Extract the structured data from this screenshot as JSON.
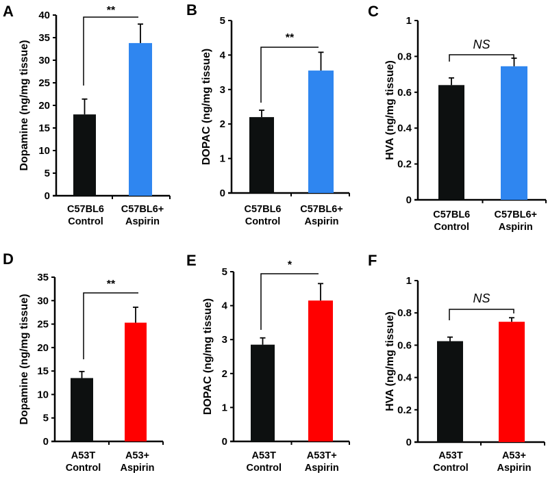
{
  "chart_data": [
    {
      "panel": "A",
      "type": "bar",
      "ylabel": "Dopamine (ng/mg tissue)",
      "categories": [
        [
          "C57BL6",
          "Control"
        ],
        [
          "C57BL6+",
          "Aspirin"
        ]
      ],
      "values": [
        18.0,
        33.8
      ],
      "errors": [
        21.4,
        38.0
      ],
      "colors": [
        "#0d1010",
        "#2f86f0"
      ],
      "ylim": [
        0,
        40
      ],
      "yticks": [
        "0",
        "5",
        "10",
        "15",
        "20",
        "25",
        "30",
        "35",
        "40"
      ],
      "tickstep": 5,
      "significance": "**"
    },
    {
      "panel": "B",
      "type": "bar",
      "ylabel": "DOPAC (ng/mg tissue)",
      "categories": [
        [
          "C57BL6",
          "Control"
        ],
        [
          "C57BL6+",
          "Aspirin"
        ]
      ],
      "values": [
        2.2,
        3.55
      ],
      "errors": [
        2.4,
        4.08
      ],
      "colors": [
        "#0d1010",
        "#2f86f0"
      ],
      "ylim": [
        0,
        5
      ],
      "yticks": [
        "0",
        "1",
        "2",
        "3",
        "4",
        "5"
      ],
      "tickstep": 1,
      "significance": "**"
    },
    {
      "panel": "C",
      "type": "bar",
      "ylabel": "HVA (ng/mg tissue)",
      "categories": [
        [
          "C57BL6",
          "Control"
        ],
        [
          "C57BL6+",
          "Aspirin"
        ]
      ],
      "values": [
        0.64,
        0.745
      ],
      "errors": [
        0.68,
        0.79
      ],
      "colors": [
        "#0d1010",
        "#2f86f0"
      ],
      "ylim": [
        0,
        1
      ],
      "yticks": [
        "0",
        "0.2",
        "0.4",
        "0.6",
        "0.8",
        "1"
      ],
      "tickstep": 0.2,
      "significance": "NS"
    },
    {
      "panel": "D",
      "type": "bar",
      "ylabel": "Dopamine (ng/mg tissue)",
      "categories": [
        [
          "A53T",
          "Control"
        ],
        [
          "A53+",
          "Aspirin"
        ]
      ],
      "values": [
        13.5,
        25.3
      ],
      "errors": [
        14.9,
        28.6
      ],
      "colors": [
        "#0d1010",
        "#ff0000"
      ],
      "ylim": [
        0,
        35
      ],
      "yticks": [
        "0",
        "5",
        "10",
        "15",
        "20",
        "25",
        "30",
        "35"
      ],
      "tickstep": 5,
      "significance": "**"
    },
    {
      "panel": "E",
      "type": "bar",
      "ylabel": "DOPAC (ng/mg tissue)",
      "categories": [
        [
          "A53T",
          "Control"
        ],
        [
          "A53T+",
          "Aspirin"
        ]
      ],
      "values": [
        2.85,
        4.15
      ],
      "errors": [
        3.05,
        4.65
      ],
      "colors": [
        "#0d1010",
        "#ff0000"
      ],
      "ylim": [
        0,
        5
      ],
      "yticks": [
        "0",
        "1",
        "2",
        "3",
        "4",
        "5"
      ],
      "tickstep": 1,
      "significance": "*"
    },
    {
      "panel": "F",
      "type": "bar",
      "ylabel": "HVA (ng/mg tissue)",
      "categories": [
        [
          "A53T",
          "Control"
        ],
        [
          "A53+",
          "Aspirin"
        ]
      ],
      "values": [
        0.625,
        0.745
      ],
      "errors": [
        0.65,
        0.77
      ],
      "colors": [
        "#0d1010",
        "#ff0000"
      ],
      "ylim": [
        0,
        1
      ],
      "yticks": [
        "0",
        "0.2",
        "0.4",
        "0.6",
        "0.8",
        "1"
      ],
      "tickstep": 0.2,
      "significance": "NS"
    }
  ]
}
